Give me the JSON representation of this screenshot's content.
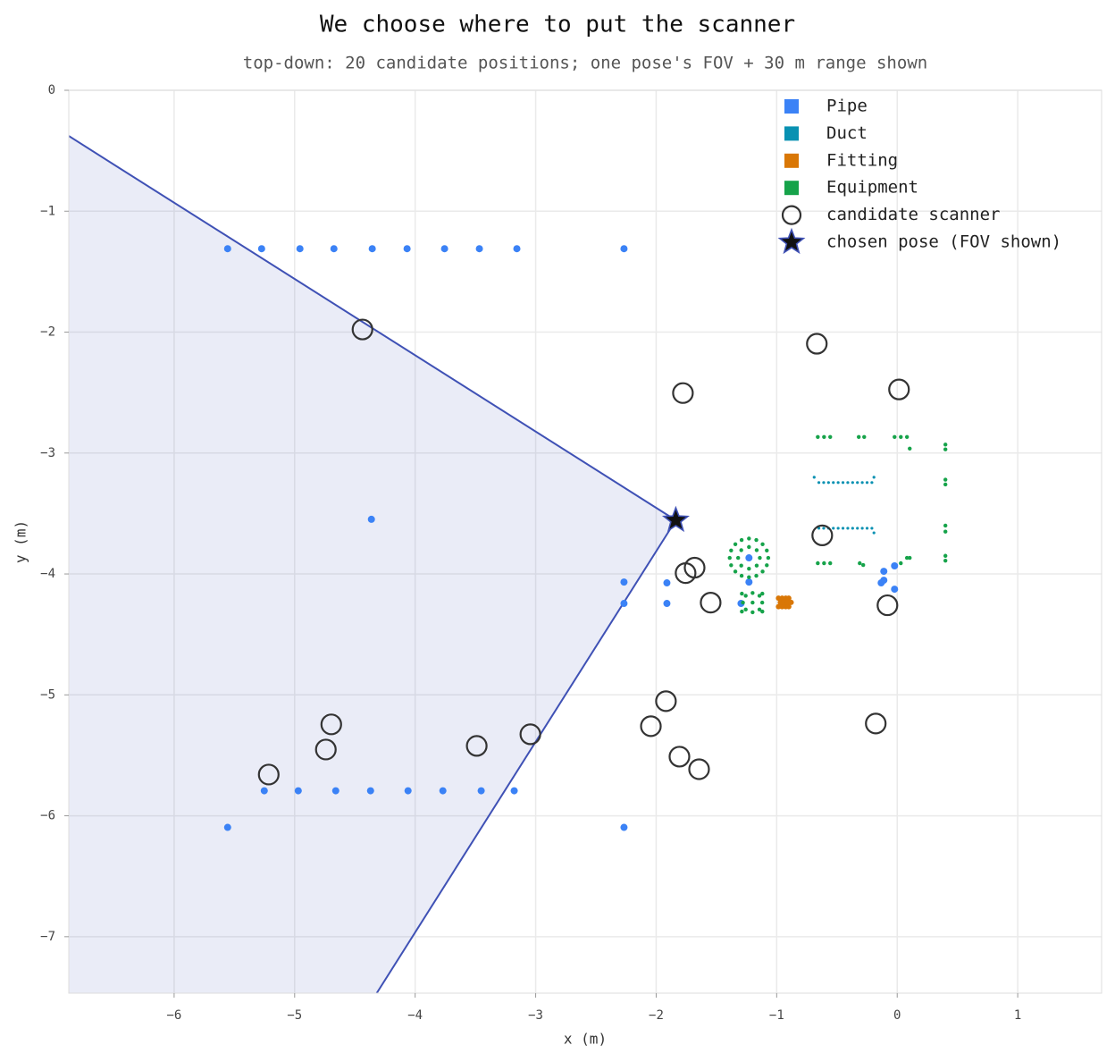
{
  "chart_data": {
    "type": "scatter",
    "title": "We choose where to put the scanner",
    "subtitle": "top-down: 20 candidate positions; one pose's FOV + 30 m range shown",
    "x_label": "x (m)",
    "y_label": "y (m)",
    "xlim": [
      -6.874,
      1.696
    ],
    "ylim": [
      -7.467,
      0
    ],
    "xticks": [
      {
        "value": -6,
        "label": "−6"
      },
      {
        "value": -5,
        "label": "−5"
      },
      {
        "value": -4,
        "label": "−4"
      },
      {
        "value": -3,
        "label": "−3"
      },
      {
        "value": -2,
        "label": "−2"
      },
      {
        "value": -1,
        "label": "−1"
      },
      0,
      1
    ],
    "yticks": [
      0,
      {
        "value": -1,
        "label": "−1"
      },
      {
        "value": -2,
        "label": "−2"
      },
      {
        "value": -3,
        "label": "−3"
      },
      {
        "value": -4,
        "label": "−4"
      },
      {
        "value": -5,
        "label": "−5"
      },
      {
        "value": -6,
        "label": "−6"
      },
      {
        "value": -7,
        "label": "−7"
      }
    ],
    "grid": true,
    "legend": "upper right",
    "fov": {
      "color": "#3f51b5",
      "x": [
        -1.837,
        -6.874,
        -6.874,
        -4.319
      ],
      "y": [
        -3.556,
        -0.378,
        -7.467,
        -7.467
      ]
    },
    "series": [
      {
        "name": "Pipe",
        "color": "#3b82f6",
        "marker": "dot",
        "x": [
          -5.556,
          -5.274,
          -4.956,
          -4.674,
          -4.356,
          -4.067,
          -3.756,
          -3.467,
          -3.156,
          -2.267,
          -5.252,
          -4.97,
          -4.659,
          -4.37,
          -4.059,
          -3.77,
          -3.452,
          -3.178,
          -5.556,
          -2.267,
          -4.363,
          -2.267,
          -2.267,
          -1.911,
          -1.911,
          -1.296,
          -1.23,
          -1.23,
          -0.111,
          -0.111,
          -0.022,
          -0.022,
          -0.133
        ],
        "y": [
          -1.31,
          -1.31,
          -1.31,
          -1.31,
          -1.31,
          -1.31,
          -1.31,
          -1.31,
          -1.31,
          -1.31,
          -5.793,
          -5.793,
          -5.793,
          -5.793,
          -5.793,
          -5.793,
          -5.793,
          -5.793,
          -6.096,
          -6.096,
          -3.548,
          -4.067,
          -4.244,
          -4.074,
          -4.244,
          -4.244,
          -4.067,
          -3.867,
          -3.978,
          -4.052,
          -3.933,
          -4.126,
          -4.074
        ]
      },
      {
        "name": "Duct",
        "color": "#0891b2",
        "marker": "dot",
        "x": [
          -0.65,
          -0.61,
          -0.57,
          -0.53,
          -0.49,
          -0.45,
          -0.41,
          -0.37,
          -0.33,
          -0.29,
          -0.25,
          -0.21,
          -0.65,
          -0.61,
          -0.57,
          -0.53,
          -0.49,
          -0.45,
          -0.41,
          -0.37,
          -0.33,
          -0.29,
          -0.25,
          -0.21,
          -0.689,
          -0.193,
          -0.193
        ],
        "y": [
          -3.244,
          -3.244,
          -3.244,
          -3.244,
          -3.244,
          -3.244,
          -3.244,
          -3.244,
          -3.244,
          -3.244,
          -3.244,
          -3.244,
          -3.622,
          -3.622,
          -3.622,
          -3.622,
          -3.622,
          -3.622,
          -3.622,
          -3.622,
          -3.622,
          -3.622,
          -3.622,
          -3.622,
          -3.2,
          -3.2,
          -3.66
        ]
      },
      {
        "name": "Fitting",
        "color": "#d97706",
        "marker": "dot",
        "x": [
          -0.985,
          -0.985,
          -0.955,
          -0.955,
          -0.925,
          -0.925,
          -0.9,
          -0.9,
          -0.88,
          -0.97,
          -0.94,
          -0.91
        ],
        "y": [
          -4.2,
          -4.27,
          -4.2,
          -4.27,
          -4.2,
          -4.27,
          -4.2,
          -4.27,
          -4.235,
          -4.235,
          -4.235,
          -4.235
        ]
      },
      {
        "name": "Equipment",
        "color": "#16a34a",
        "marker": "dot",
        "x": [
          -1.07,
          -1.082,
          -1.117,
          -1.169,
          -1.23,
          -1.291,
          -1.343,
          -1.378,
          -1.39,
          -1.378,
          -1.343,
          -1.291,
          -1.23,
          -1.169,
          -1.117,
          -1.082,
          -1.14,
          -1.166,
          -1.23,
          -1.294,
          -1.32,
          -1.294,
          -1.23,
          -1.166,
          -1.2,
          -1.12,
          -1.28,
          -1.2,
          -1.2,
          -1.143,
          -1.257,
          -1.143,
          -1.257,
          -1.289,
          -1.289,
          -1.119,
          -1.119,
          -0.659,
          -0.607,
          -0.556,
          -0.319,
          -0.274,
          -0.022,
          0.03,
          0.081,
          0.104,
          0.4,
          0.4,
          0.4,
          0.4,
          0.4,
          0.4,
          0.4,
          0.4,
          -0.659,
          -0.607,
          -0.556,
          -0.311,
          -0.282,
          0.081,
          0.104,
          0.03
        ],
        "y": [
          -3.867,
          -3.806,
          -3.754,
          -3.719,
          -3.707,
          -3.719,
          -3.754,
          -3.806,
          -3.867,
          -3.928,
          -3.98,
          -4.015,
          -4.027,
          -4.015,
          -3.98,
          -3.928,
          -3.867,
          -3.803,
          -3.777,
          -3.803,
          -3.867,
          -3.931,
          -3.957,
          -3.931,
          -4.237,
          -4.237,
          -4.237,
          -4.157,
          -4.317,
          -4.18,
          -4.18,
          -4.294,
          -4.294,
          -4.163,
          -4.311,
          -4.163,
          -4.311,
          -2.867,
          -2.867,
          -2.867,
          -2.867,
          -2.867,
          -2.867,
          -2.867,
          -2.867,
          -2.963,
          -2.93,
          -2.97,
          -3.22,
          -3.26,
          -3.6,
          -3.65,
          -3.85,
          -3.89,
          -3.911,
          -3.911,
          -3.911,
          -3.911,
          -3.926,
          -3.867,
          -3.867,
          -3.911
        ]
      },
      {
        "name": "candidate scanner",
        "color": "#333333",
        "marker": "circle",
        "x": [
          -4.437,
          -0.667,
          -1.778,
          0.015,
          -0.622,
          -1.756,
          -1.681,
          -1.548,
          -0.081,
          -1.919,
          -2.044,
          -0.178,
          -1.807,
          -1.644,
          -3.044,
          -3.489,
          -4.696,
          -4.741,
          -5.215
        ],
        "y": [
          -1.978,
          -2.096,
          -2.504,
          -2.474,
          -3.681,
          -3.993,
          -3.948,
          -4.237,
          -4.259,
          -5.052,
          -5.259,
          -5.237,
          -5.511,
          -5.615,
          -5.326,
          -5.422,
          -5.244,
          -5.452,
          -5.659
        ]
      },
      {
        "name": "chosen pose (FOV shown)",
        "color": "#3f51b5",
        "marker": "star",
        "x": [
          -1.837
        ],
        "y": [
          -3.556
        ]
      }
    ]
  }
}
